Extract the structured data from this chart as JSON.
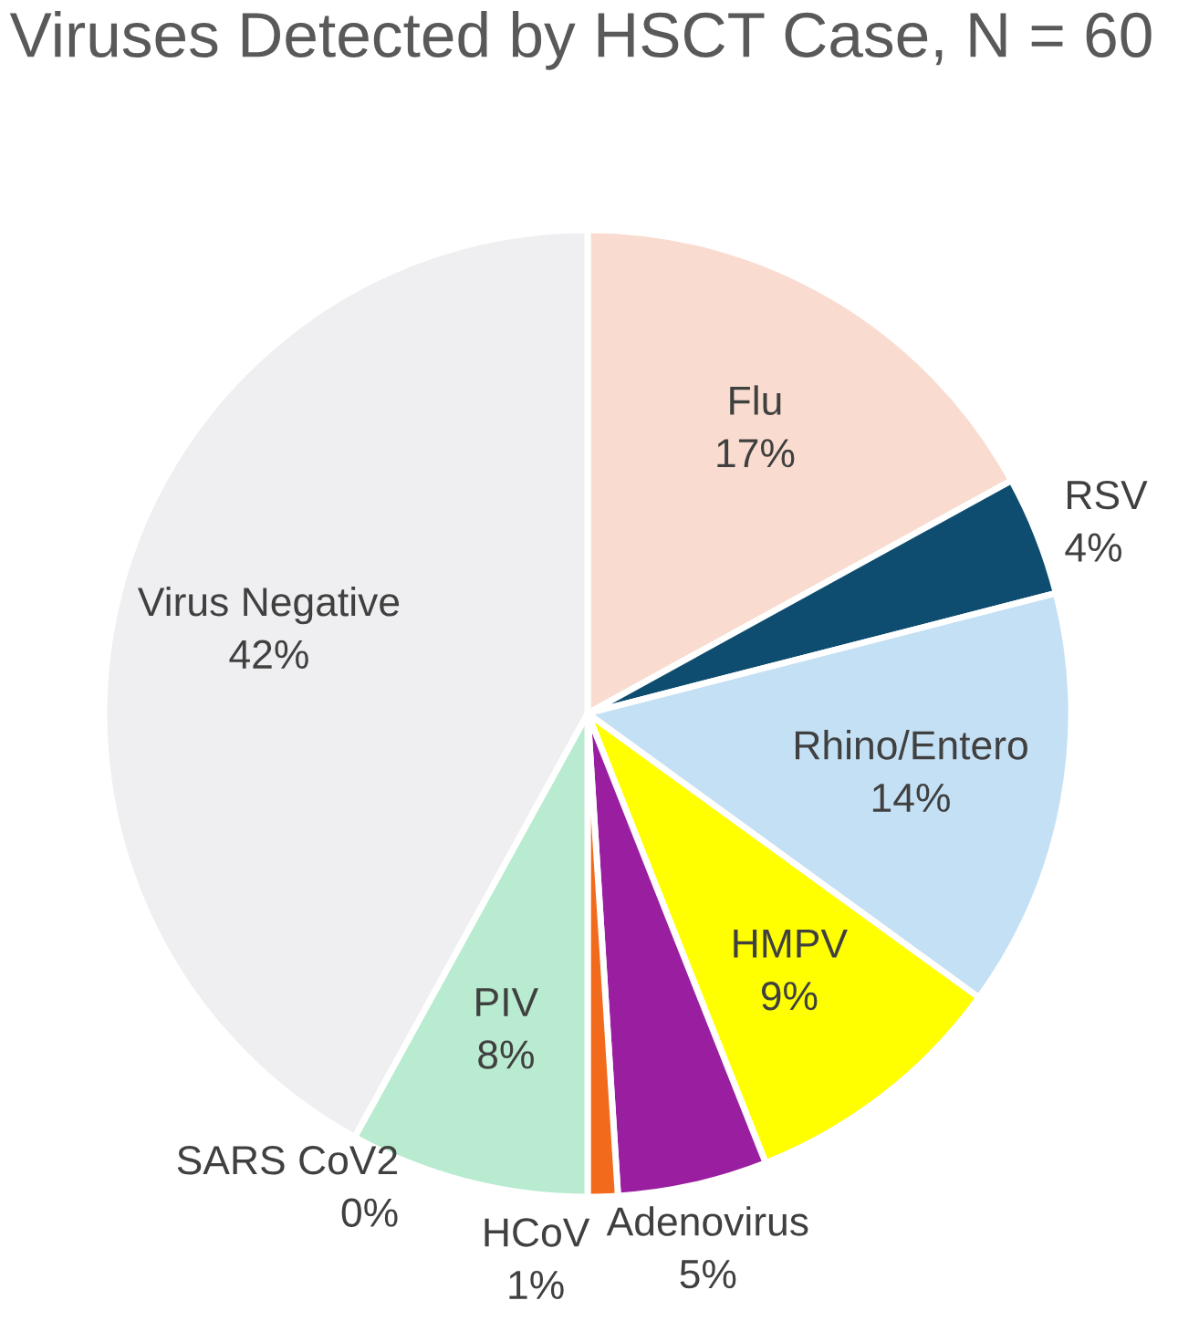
{
  "chart_data": {
    "type": "pie",
    "title": "Viruses Detected by HSCT Case, N = 60",
    "categories": [
      "Flu",
      "RSV",
      "Rhino/Entero",
      "HMPV",
      "Adenovirus",
      "HCoV",
      "SARS CoV2",
      "PIV",
      "Virus Negative"
    ],
    "values": [
      17,
      4,
      14,
      9,
      5,
      1,
      0,
      8,
      42
    ],
    "value_labels": [
      "17%",
      "4%",
      "14%",
      "9%",
      "5%",
      "1%",
      "0%",
      "8%",
      "42%"
    ],
    "colors": [
      "#f9dccf",
      "#0e4d70",
      "#c4e0f4",
      "#ffff00",
      "#9a1fa0",
      "#f26a1b",
      null,
      "#b8ebcf",
      "#efeff1"
    ]
  }
}
